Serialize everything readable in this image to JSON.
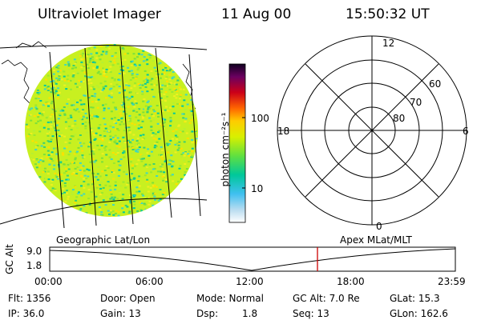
{
  "header": {
    "title": "Ultraviolet Imager",
    "date": "11 Aug 00",
    "time": "15:50:32 UT"
  },
  "colorbar": {
    "unit_label": "photon cm⁻²s⁻¹",
    "tick_100": "100",
    "tick_10": "10"
  },
  "polar": {
    "labels": {
      "top": "12",
      "bottom": "0",
      "left": "18",
      "right": "6"
    },
    "rings": [
      "60",
      "70",
      "80"
    ]
  },
  "left_caption": "Geographic Lat/Lon",
  "right_caption": "Apex MLat/MLT",
  "timeline": {
    "ylabel": "GC Alt",
    "y_ticks": [
      "9.0",
      "1.8"
    ],
    "x_ticks": [
      "00:00",
      "06:00",
      "12:00",
      "18:00",
      "23:59"
    ],
    "marker_color": "#cc0000"
  },
  "status": {
    "flt": "Flt: 1356",
    "ip": "IP: 36.0",
    "door": "Door: Open",
    "gain": "Gain: 13",
    "mode": "Mode: Normal",
    "dsp_label": "Dsp:",
    "dsp_value": "1.8",
    "gc_alt": "GC Alt: 7.0 Re",
    "seq": "Seq: 13",
    "glat": "GLat:  15.3",
    "glon": "GLon: 162.6"
  }
}
